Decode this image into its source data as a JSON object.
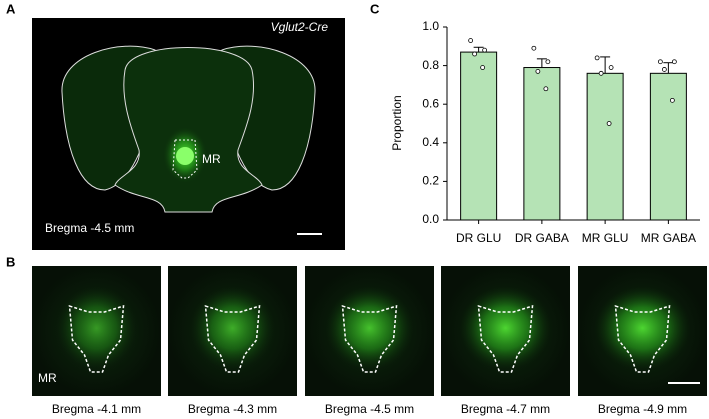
{
  "panels": {
    "A": {
      "label": "A",
      "genotype": "Vglut2-Cre",
      "region": "MR",
      "bregma": "Bregma -4.5 mm"
    },
    "B": {
      "label": "B",
      "region": "MR",
      "bregmas": [
        "Bregma -4.1 mm",
        "Bregma -4.3 mm",
        "Bregma -4.5 mm",
        "Bregma -4.7 mm",
        "Bregma -4.9 mm"
      ]
    },
    "C": {
      "label": "C"
    }
  },
  "chart_data": {
    "type": "bar",
    "y_label": "Proportion",
    "categories": [
      "DR GLU",
      "DR GABA",
      "MR GLU",
      "MR GABA"
    ],
    "values": [
      0.87,
      0.79,
      0.76,
      0.76
    ],
    "errors": [
      0.025,
      0.045,
      0.085,
      0.055
    ],
    "points": [
      [
        0.93,
        0.88,
        0.86,
        0.79
      ],
      [
        0.89,
        0.82,
        0.77,
        0.68
      ],
      [
        0.84,
        0.79,
        0.76,
        0.5
      ],
      [
        0.82,
        0.82,
        0.78,
        0.62
      ]
    ],
    "color": "#b5e3b5",
    "ylim": [
      0,
      1.0
    ],
    "yticks": [
      {
        "value": 0,
        "label": "0.0"
      },
      {
        "value": 0.2,
        "label": "0.2"
      },
      {
        "value": 0.4,
        "label": "0.4"
      },
      {
        "value": 0.6,
        "label": "0.6"
      },
      {
        "value": 0.8,
        "label": "0.8"
      },
      {
        "value": 1.0,
        "label": "1.0"
      }
    ]
  }
}
